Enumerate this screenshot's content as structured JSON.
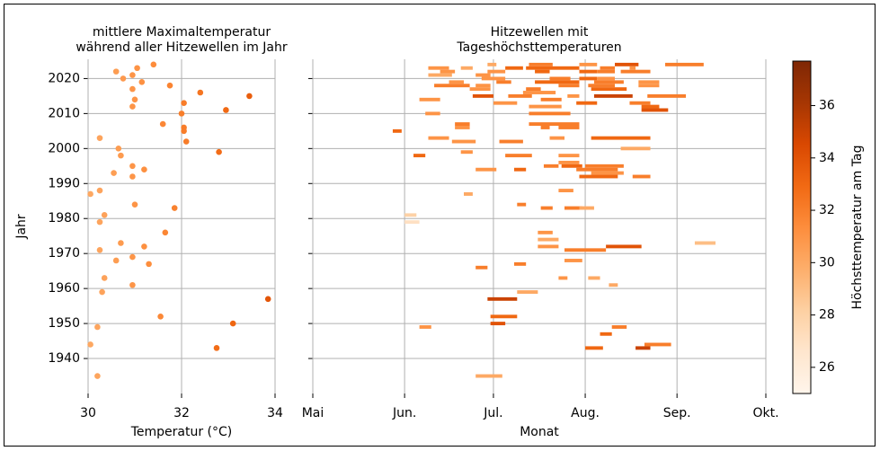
{
  "chart_data": [
    {
      "type": "scatter",
      "title": [
        "mittlere Maximaltemperatur",
        "während aller Hitzewellen im Jahr"
      ],
      "x_label": "Temperatur (°C)",
      "y_label": "Jahr",
      "x": [
        31.4,
        31.05,
        30.6,
        30.95,
        30.75,
        31.15,
        31.75,
        30.95,
        32.4,
        33.45,
        31.0,
        32.05,
        30.95,
        32.95,
        32.0,
        31.6,
        32.05,
        32.05,
        30.25,
        32.1,
        30.65,
        32.8,
        30.7,
        30.95,
        31.2,
        30.55,
        30.95,
        30.25,
        30.05,
        31.0,
        31.85,
        30.35,
        30.25,
        31.65,
        30.7,
        31.2,
        30.25,
        30.95,
        30.6,
        31.3,
        30.35,
        30.95,
        30.3,
        33.85,
        31.55,
        33.1,
        30.2,
        30.05,
        32.75,
        30.2
      ],
      "y": [
        2024,
        2023,
        2022,
        2021,
        2020,
        2019,
        2018,
        2017,
        2016,
        2015,
        2014,
        2013,
        2012,
        2011,
        2010,
        2007,
        2006,
        2005,
        2003,
        2002,
        2000,
        1999,
        1998,
        1995,
        1994,
        1993,
        1992,
        1988,
        1987,
        1984,
        1983,
        1981,
        1979,
        1976,
        1973,
        1972,
        1971,
        1969,
        1968,
        1967,
        1963,
        1961,
        1959,
        1957,
        1952,
        1950,
        1949,
        1944,
        1943,
        1935
      ],
      "xlim": [
        30,
        34
      ],
      "xticks": [
        30,
        32,
        34
      ],
      "ylim": [
        1930,
        2025.5
      ],
      "yticks": [
        1940,
        1950,
        1960,
        1970,
        1980,
        1990,
        2000,
        2010,
        2020
      ],
      "grid": true
    },
    {
      "type": "timeline",
      "title": [
        "Hitzewellen mit",
        "Tageshöchsttemperaturen"
      ],
      "x_label": "Monat",
      "xlim": [
        121,
        274
      ],
      "xticks": [
        {
          "value": 121,
          "label": "Mai"
        },
        {
          "value": 152,
          "label": "Jun."
        },
        {
          "value": 182,
          "label": "Jul."
        },
        {
          "value": 213,
          "label": "Aug."
        },
        {
          "value": 244,
          "label": "Sep."
        },
        {
          "value": 274,
          "label": "Okt."
        }
      ],
      "ylim": [
        1930,
        2025.5
      ],
      "yticks": [
        1940,
        1950,
        1960,
        1970,
        1980,
        1990,
        2000,
        2010,
        2020
      ],
      "grid": true,
      "y": [
        2024,
        2024,
        2024,
        2024,
        2024,
        2023,
        2023,
        2023,
        2023,
        2023,
        2023,
        2022,
        2022,
        2022,
        2022,
        2022,
        2022,
        2021,
        2021,
        2020,
        2020,
        2020,
        2020,
        2019,
        2019,
        2019,
        2019,
        2019,
        2018,
        2018,
        2018,
        2018,
        2018,
        2017,
        2017,
        2017,
        2016,
        2015,
        2015,
        2015,
        2015,
        2015,
        2014,
        2014,
        2013,
        2013,
        2013,
        2012,
        2012,
        2011,
        2010,
        2010,
        2007,
        2007,
        2006,
        2006,
        2006,
        2005,
        2003,
        2003,
        2003,
        2002,
        2002,
        2000,
        1999,
        1998,
        1998,
        1998,
        1996,
        1995,
        1995,
        1995,
        1994,
        1994,
        1994,
        1993,
        1992,
        1992,
        1988,
        1987,
        1984,
        1983,
        1983,
        1983,
        1981,
        1979,
        1976,
        1974,
        1973,
        1972,
        1972,
        1971,
        1968,
        1967,
        1966,
        1963,
        1963,
        1961,
        1959,
        1957,
        1952,
        1950,
        1949,
        1949,
        1947,
        1944,
        1943,
        1943,
        1935
      ],
      "start": [
        180,
        194,
        211,
        223,
        240,
        160,
        171,
        186,
        193,
        218,
        228,
        164,
        180,
        196,
        211,
        217,
        225,
        160,
        176,
        178,
        201,
        211,
        217,
        167,
        183,
        196,
        216,
        231,
        162,
        176,
        204,
        214,
        231,
        174,
        193,
        215,
        192,
        175,
        187,
        207,
        216,
        234,
        157,
        198,
        182,
        210,
        228,
        194,
        232,
        232,
        159,
        194,
        169,
        194,
        169,
        198,
        204,
        148,
        160,
        201,
        215,
        168,
        184,
        225,
        171,
        155,
        186,
        204,
        204,
        199,
        205,
        213,
        176,
        189,
        210,
        215,
        211,
        229,
        204,
        172,
        190,
        198,
        206,
        211,
        152,
        152,
        197,
        197,
        250,
        197,
        220,
        206,
        206,
        189,
        176,
        204,
        214,
        221,
        190,
        180,
        181,
        181,
        157,
        222,
        218,
        233,
        213,
        230,
        176
      ],
      "end": [
        182,
        201,
        216,
        230,
        252,
        166,
        174,
        191,
        210,
        222,
        229,
        168,
        185,
        200,
        216,
        222,
        234,
        167,
        180,
        185,
        207,
        216,
        222,
        171,
        187,
        210,
        225,
        237,
        173,
        180,
        210,
        222,
        237,
        180,
        197,
        226,
        202,
        181,
        194,
        210,
        228,
        246,
        163,
        204,
        189,
        216,
        234,
        204,
        237,
        240,
        163,
        207,
        173,
        210,
        173,
        200,
        210,
        150,
        166,
        205,
        234,
        175,
        191,
        234,
        174,
        158,
        194,
        210,
        210,
        203,
        211,
        225,
        182,
        192,
        223,
        225,
        223,
        234,
        208,
        174,
        192,
        201,
        211,
        215,
        155,
        156,
        201,
        203,
        256,
        203,
        231,
        219,
        211,
        192,
        179,
        206,
        217,
        223,
        196,
        189,
        189,
        185,
        160,
        226,
        221,
        241,
        218,
        234,
        184
      ],
      "values": [
        30,
        32,
        31,
        34,
        32,
        31,
        30,
        33,
        33,
        32,
        31,
        31,
        31,
        33,
        33,
        32,
        32,
        30,
        31,
        31,
        32,
        33,
        31,
        31,
        32,
        33,
        32,
        31,
        32,
        31,
        32,
        32,
        31,
        31,
        32,
        33,
        31,
        34,
        32,
        31,
        35,
        32,
        31,
        32,
        31,
        33,
        32,
        31,
        33,
        34,
        31,
        32,
        32,
        32,
        31,
        32,
        32,
        33,
        31,
        31,
        33,
        31,
        32,
        30,
        31,
        33,
        32,
        31,
        31,
        32,
        33,
        32,
        31,
        33,
        32,
        31,
        33,
        32,
        31,
        30,
        32,
        32,
        32,
        30,
        28,
        27,
        31,
        30,
        29,
        31,
        34,
        32,
        31,
        32,
        32,
        31,
        30,
        30,
        30,
        35,
        33,
        34,
        31,
        32,
        33,
        32,
        33,
        35,
        30
      ],
      "colorbar": {
        "label": "Höchsttemperatur am Tag",
        "lim": [
          25,
          37.7
        ],
        "ticks": [
          26,
          28,
          30,
          32,
          34,
          36
        ]
      },
      "colormap": [
        "#fff5eb",
        "#fee6ce",
        "#fdd0a2",
        "#fdae6b",
        "#fd8d3c",
        "#f16913",
        "#d94801",
        "#a63603",
        "#7f2704"
      ]
    }
  ]
}
